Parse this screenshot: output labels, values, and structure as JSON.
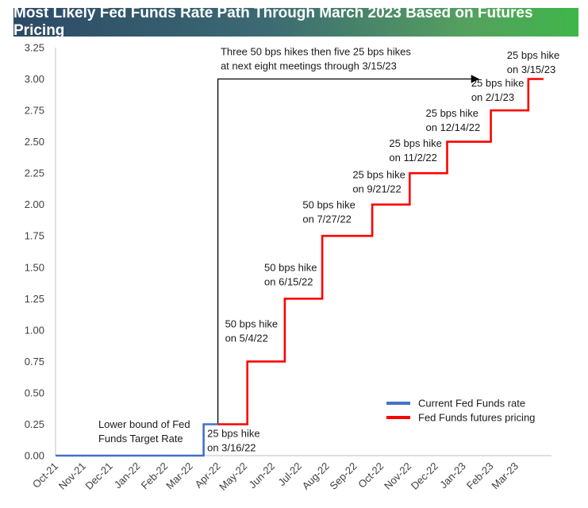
{
  "chart_data": {
    "type": "line",
    "title": "Most Likely Fed Funds Rate Path Through March 2023 Based on Futures Pricing",
    "x_ticks": [
      "Oct-21",
      "Nov-21",
      "Dec-21",
      "Jan-22",
      "Feb-22",
      "Mar-22",
      "Apr-22",
      "May-22",
      "Jun-22",
      "Jul-22",
      "Aug-22",
      "Sep-22",
      "Oct-22",
      "Nov-22",
      "Dec-22",
      "Jan-23",
      "Feb-23",
      "Mar-23"
    ],
    "y_ticks": [
      "0.00",
      "0.25",
      "0.50",
      "0.75",
      "1.00",
      "1.25",
      "1.50",
      "1.75",
      "2.00",
      "2.25",
      "2.50",
      "2.75",
      "3.00",
      "3.25"
    ],
    "ylim": [
      0,
      3.25
    ],
    "grid": false,
    "legend_position": "bottom-right",
    "series": [
      {
        "name": "Current Fed Funds rate",
        "color": "#4472c4",
        "points": [
          [
            "2021-10-01",
            0
          ],
          [
            "2022-03-16",
            0
          ],
          [
            "2022-03-16",
            0.25
          ],
          [
            "2022-04-01",
            0.25
          ]
        ]
      },
      {
        "name": "Fed Funds futures pricing",
        "color": "#ff0000",
        "points": [
          [
            "2022-04-01",
            0.25
          ],
          [
            "2022-05-04",
            0.25
          ],
          [
            "2022-05-04",
            0.75
          ],
          [
            "2022-06-15",
            0.75
          ],
          [
            "2022-06-15",
            1.25
          ],
          [
            "2022-07-27",
            1.25
          ],
          [
            "2022-07-27",
            1.75
          ],
          [
            "2022-09-21",
            1.75
          ],
          [
            "2022-09-21",
            2.0
          ],
          [
            "2022-11-02",
            2.0
          ],
          [
            "2022-11-02",
            2.25
          ],
          [
            "2022-12-14",
            2.25
          ],
          [
            "2022-12-14",
            2.5
          ],
          [
            "2023-02-01",
            2.5
          ],
          [
            "2023-02-01",
            2.75
          ],
          [
            "2023-03-15",
            2.75
          ],
          [
            "2023-03-15",
            3.0
          ],
          [
            "2023-04-01",
            3.0
          ]
        ]
      }
    ],
    "annotations": [
      {
        "lines": [
          "Lower bound of Fed",
          "Funds Target Rate"
        ],
        "x": "2021-11-18",
        "y": 0.22
      },
      {
        "lines": [
          "25 bps hike",
          "on 3/16/22"
        ],
        "x": "2022-03-20",
        "y": 0.15
      },
      {
        "lines": [
          "50 bps hike",
          "on 5/4/22"
        ],
        "x": "2022-04-09",
        "y": 1.02
      },
      {
        "lines": [
          "50 bps hike",
          "on 6/15/22"
        ],
        "x": "2022-05-23",
        "y": 1.47
      },
      {
        "lines": [
          "50 bps hike",
          "on 7/27/22"
        ],
        "x": "2022-07-05",
        "y": 1.97
      },
      {
        "lines": [
          "25 bps hike",
          "on 9/21/22"
        ],
        "x": "2022-08-30",
        "y": 2.21
      },
      {
        "lines": [
          "25 bps hike",
          "on 11/2/22"
        ],
        "x": "2022-10-10",
        "y": 2.46
      },
      {
        "lines": [
          "25 bps hike",
          "on 12/14/22"
        ],
        "x": "2022-11-20",
        "y": 2.7
      },
      {
        "lines": [
          "25 bps hike",
          "on 2/1/23"
        ],
        "x": "2023-01-10",
        "y": 2.94
      },
      {
        "lines": [
          "25 bps hike",
          "on 3/15/23"
        ],
        "x": "2023-02-19",
        "y": 3.16
      },
      {
        "lines": [
          "Three 50 bps hikes then five 25 bps hikes",
          "at next eight meetings through 3/15/23"
        ],
        "x": "2022-04-04",
        "y": 3.19
      }
    ],
    "arrow": {
      "points": [
        [
          "2022-04-01",
          0.25
        ],
        [
          "2022-04-01",
          3.0
        ],
        [
          "2023-01-18",
          3.0
        ]
      ]
    }
  }
}
